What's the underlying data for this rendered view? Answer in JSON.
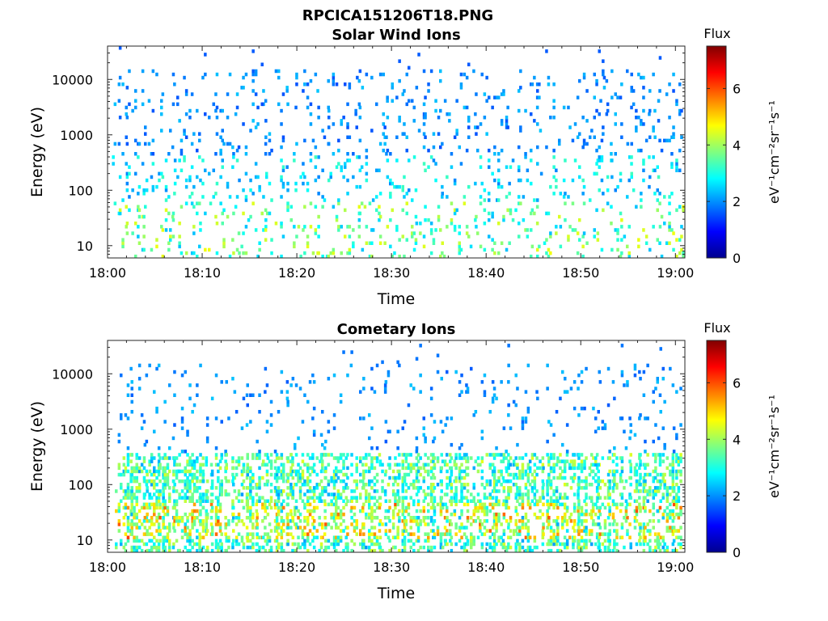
{
  "figure_title": "RPCICA151206T18.PNG",
  "chart_data": [
    {
      "type": "heatmap",
      "title": "Solar Wind Ions",
      "xlabel": "Time",
      "ylabel": "Energy (eV)",
      "yscale": "log",
      "ylim": [
        6,
        40000
      ],
      "xlim": [
        "18:00",
        "19:01"
      ],
      "xticks": [
        "18:00",
        "18:10",
        "18:20",
        "18:30",
        "18:40",
        "18:50",
        "19:00"
      ],
      "yticks": [
        "10",
        "100",
        "1000",
        "10000"
      ],
      "colorbar": {
        "title": "Flux",
        "label": "eV⁻¹cm⁻²sr⁻¹s⁻¹",
        "ticks": [
          "0",
          "2",
          "4",
          "6"
        ],
        "range": [
          0,
          7.5
        ],
        "colormap": "jet"
      },
      "bursts_minutes": [
        2,
        5.5,
        8.5,
        12,
        15,
        18,
        21.5,
        25,
        28,
        31,
        34,
        37,
        40.5,
        44,
        47,
        50.5,
        53.5,
        56.5,
        59.5
      ],
      "flux_description": "scattered single-channel counts, mostly 2-4 (blue/cyan), occasional 4-5 (yellow/orange) near 20-40 eV"
    },
    {
      "type": "heatmap",
      "title": "Cometary Ions",
      "xlabel": "Time",
      "ylabel": "Energy (eV)",
      "yscale": "log",
      "ylim": [
        6,
        40000
      ],
      "xlim": [
        "18:00",
        "19:01"
      ],
      "xticks": [
        "18:00",
        "18:10",
        "18:20",
        "18:30",
        "18:40",
        "18:50",
        "19:00"
      ],
      "yticks": [
        "10",
        "100",
        "1000",
        "10000"
      ],
      "colorbar": {
        "title": "Flux",
        "label": "eV⁻¹cm⁻²sr⁻¹s⁻¹",
        "ticks": [
          "0",
          "2",
          "4",
          "6"
        ],
        "range": [
          0,
          7.5
        ],
        "colormap": "jet"
      },
      "bursts_minutes": [
        2.5,
        5.5,
        8.5,
        11.5,
        15,
        18,
        21,
        24,
        27.5,
        31,
        34,
        37,
        40.5,
        43.5,
        47,
        50,
        53,
        56.5,
        59.5
      ],
      "flux_description": "dense vertical bursts below ~300 eV with peak flux 5-7 (orange/red) around 15-40 eV; sparse blue counts at 300-15000 eV"
    }
  ]
}
